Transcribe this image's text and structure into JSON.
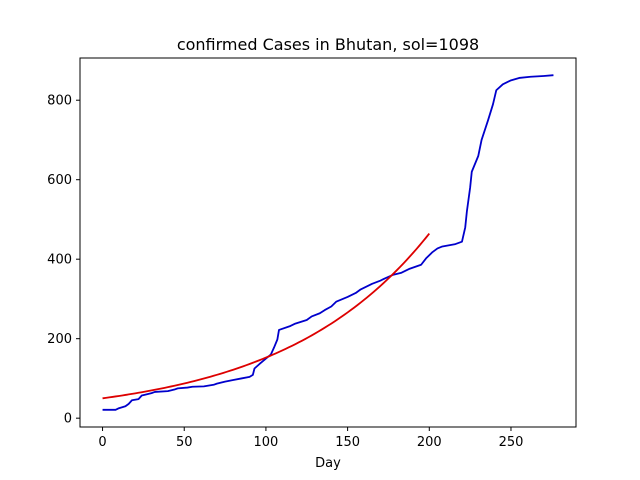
{
  "chart_data": {
    "type": "line",
    "title": "confirmed Cases in Bhutan, sol=1098",
    "xlabel": "Day",
    "ylabel": "",
    "xlim": [
      -13.8,
      289.8
    ],
    "ylim": [
      -22.2,
      906.2
    ],
    "x_ticks": [
      0,
      50,
      100,
      150,
      200,
      250
    ],
    "y_ticks": [
      0,
      200,
      400,
      600,
      800
    ],
    "grid": false,
    "series": [
      {
        "color": "#0000cc",
        "points": [
          [
            0,
            21
          ],
          [
            8,
            21
          ],
          [
            10,
            25
          ],
          [
            14,
            30
          ],
          [
            16,
            36
          ],
          [
            18,
            45
          ],
          [
            22,
            48
          ],
          [
            24,
            57
          ],
          [
            26,
            59
          ],
          [
            30,
            63
          ],
          [
            32,
            66
          ],
          [
            40,
            68
          ],
          [
            44,
            72
          ],
          [
            46,
            75
          ],
          [
            52,
            77
          ],
          [
            55,
            79
          ],
          [
            62,
            80
          ],
          [
            68,
            84
          ],
          [
            70,
            87
          ],
          [
            75,
            92
          ],
          [
            80,
            96
          ],
          [
            85,
            100
          ],
          [
            90,
            104
          ],
          [
            92,
            109
          ],
          [
            93,
            125
          ],
          [
            96,
            136
          ],
          [
            100,
            150
          ],
          [
            103,
            160
          ],
          [
            105,
            178
          ],
          [
            107,
            198
          ],
          [
            108,
            222
          ],
          [
            115,
            232
          ],
          [
            118,
            238
          ],
          [
            125,
            247
          ],
          [
            128,
            256
          ],
          [
            133,
            264
          ],
          [
            136,
            272
          ],
          [
            140,
            281
          ],
          [
            143,
            293
          ],
          [
            150,
            305
          ],
          [
            155,
            315
          ],
          [
            158,
            324
          ],
          [
            165,
            338
          ],
          [
            170,
            346
          ],
          [
            173,
            352
          ],
          [
            178,
            361
          ],
          [
            183,
            366
          ],
          [
            188,
            376
          ],
          [
            195,
            386
          ],
          [
            198,
            402
          ],
          [
            202,
            418
          ],
          [
            205,
            427
          ],
          [
            208,
            432
          ],
          [
            216,
            438
          ],
          [
            220,
            444
          ],
          [
            222,
            480
          ],
          [
            223,
            520
          ],
          [
            225,
            580
          ],
          [
            226,
            620
          ],
          [
            230,
            660
          ],
          [
            232,
            700
          ],
          [
            236,
            750
          ],
          [
            239,
            790
          ],
          [
            241,
            825
          ],
          [
            245,
            840
          ],
          [
            250,
            850
          ],
          [
            255,
            856
          ],
          [
            262,
            859
          ],
          [
            270,
            861
          ],
          [
            276,
            863
          ]
        ]
      },
      {
        "color": "#dd0000",
        "fit": {
          "a": 50,
          "b": 0.011145
        },
        "x_range": [
          0,
          200
        ]
      }
    ]
  }
}
